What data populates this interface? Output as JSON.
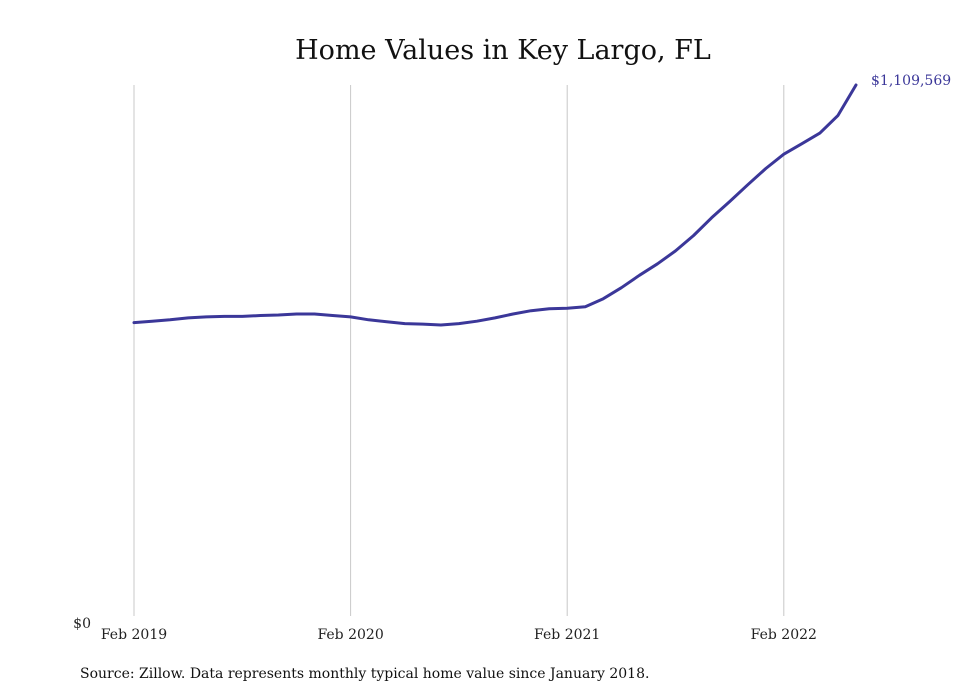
{
  "chart_data": {
    "type": "line",
    "title": "Home Values in Key Largo, FL",
    "xlabel": "",
    "ylabel": "",
    "x_ticks": [
      "Feb 2019",
      "Feb 2020",
      "Feb 2021",
      "Feb 2022"
    ],
    "y_ticks": [
      "$0"
    ],
    "ylim": [
      0,
      1109569
    ],
    "grid": "vertical",
    "colors": {
      "line": "#3b3799",
      "grid": "#c8c8c8",
      "end_label": "#3b3799"
    },
    "end_label": "$1,109,569",
    "series": [
      {
        "x": [
          "2019-02",
          "2019-03",
          "2019-04",
          "2019-05",
          "2019-06",
          "2019-07",
          "2019-08",
          "2019-09",
          "2019-10",
          "2019-11",
          "2019-12",
          "2020-01",
          "2020-02",
          "2020-03",
          "2020-04",
          "2020-05",
          "2020-06",
          "2020-07",
          "2020-08",
          "2020-09",
          "2020-10",
          "2020-11",
          "2020-12",
          "2021-01",
          "2021-02",
          "2021-03",
          "2021-04",
          "2021-05",
          "2021-06",
          "2021-07",
          "2021-08",
          "2021-09",
          "2021-10",
          "2021-11",
          "2021-12",
          "2022-01",
          "2022-02",
          "2022-03",
          "2022-04",
          "2022-05",
          "2022-06"
        ],
        "values": [
          613000,
          616000,
          619000,
          623000,
          625000,
          626000,
          626000,
          628000,
          629000,
          631000,
          631000,
          628000,
          625000,
          619000,
          615000,
          611000,
          610000,
          608000,
          611000,
          616000,
          623000,
          631000,
          638000,
          642000,
          643000,
          646000,
          663000,
          686000,
          712000,
          736000,
          763000,
          795000,
          832000,
          866000,
          901000,
          935000,
          965000,
          987000,
          1009000,
          1046000,
          1109569
        ]
      }
    ]
  },
  "source_note": "Source: Zillow. Data represents monthly typical home value since January 2018."
}
